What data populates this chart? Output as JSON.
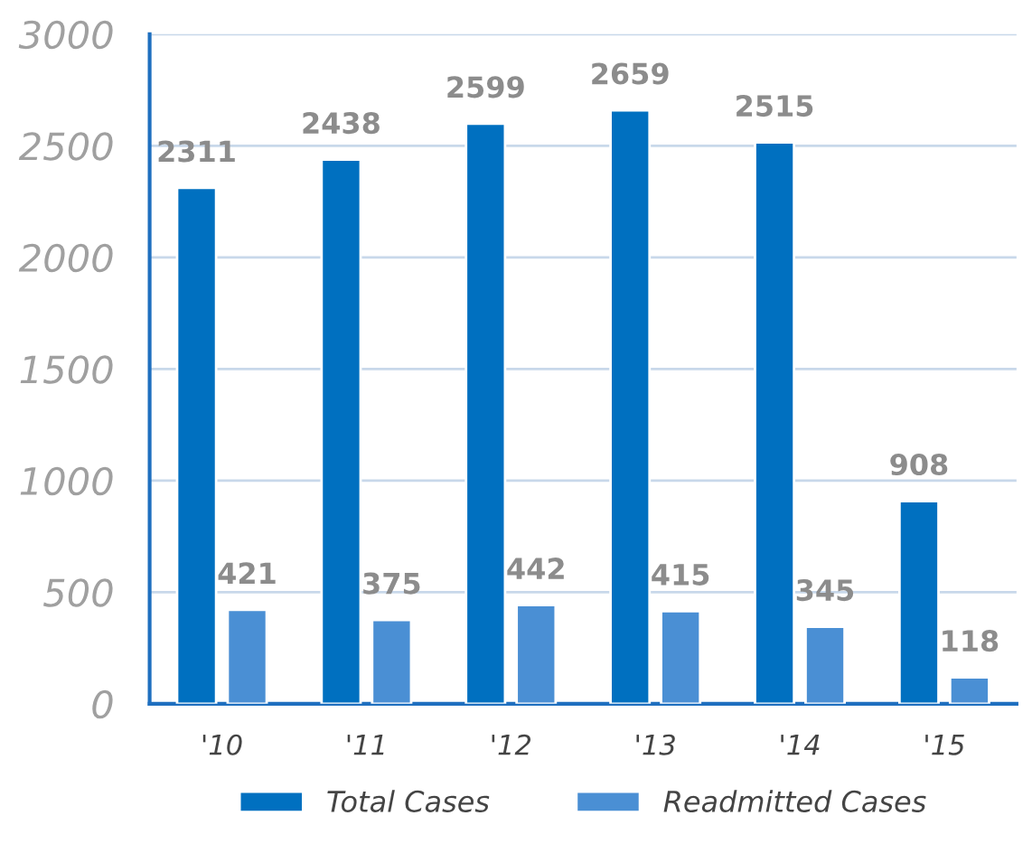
{
  "chart_data": {
    "type": "bar",
    "categories": [
      "'10",
      "'11",
      "'12",
      "'13",
      "'14",
      "'15"
    ],
    "series": [
      {
        "name": "Total Cases",
        "color": "#0070c0",
        "values": [
          2311,
          2438,
          2599,
          2659,
          2515,
          908
        ]
      },
      {
        "name": "Readmitted Cases",
        "color": "#4a8fd4",
        "values": [
          421,
          375,
          442,
          415,
          345,
          118
        ]
      }
    ],
    "ylim": [
      0,
      3000
    ],
    "yticks": [
      0,
      500,
      1000,
      1500,
      2000,
      2500,
      3000
    ],
    "grid": "y",
    "legend": "bottom",
    "data_labels": true
  }
}
